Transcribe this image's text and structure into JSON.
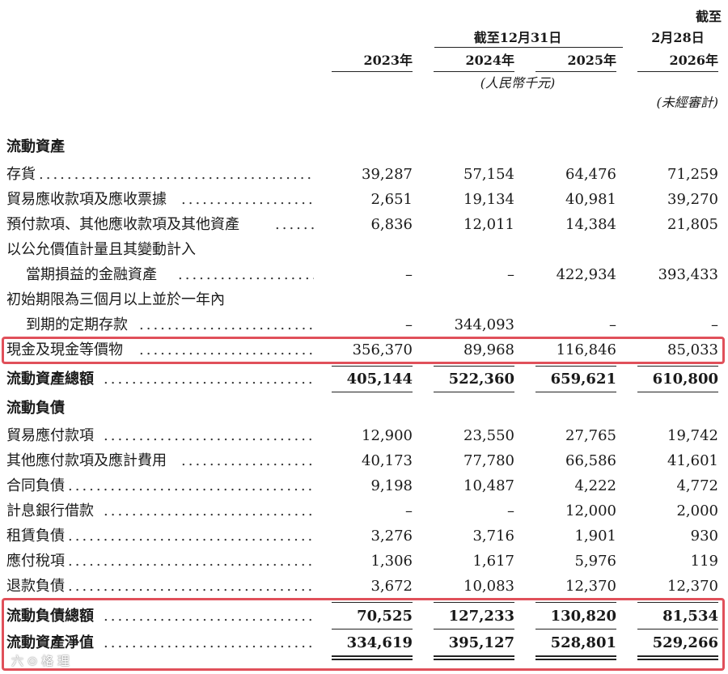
{
  "header": {
    "group_label": "截至12月31日",
    "last_col_line1": "截至",
    "last_col_line2": "2月28日",
    "years": [
      "2023年",
      "2024年",
      "2025年",
      "2026年"
    ],
    "unit_note": "(人民幣千元)",
    "unaudited_note": "(未經審計)"
  },
  "sections": {
    "current_assets_title": "流動資產",
    "current_liabilities_title": "流動負債"
  },
  "rows": [
    {
      "label": "存貨",
      "values": [
        "39,287",
        "57,154",
        "64,476",
        "71,259"
      ]
    },
    {
      "label": "貿易應收款項及應收票據",
      "values": [
        "2,651",
        "19,134",
        "40,981",
        "39,270"
      ]
    },
    {
      "label": "預付款項、其他應收款項及其他資產",
      "values": [
        "6,836",
        "12,011",
        "14,384",
        "21,805"
      ]
    },
    {
      "label": "以公允價值計量且其變動計入",
      "label2": "當期損益的金融資產",
      "values": [
        "–",
        "–",
        "422,934",
        "393,433"
      ]
    },
    {
      "label": "初始期限為三個月以上並於一年內",
      "label2": "到期的定期存款",
      "values": [
        "–",
        "344,093",
        "–",
        "–"
      ]
    },
    {
      "label": "現金及現金等價物",
      "values": [
        "356,370",
        "89,968",
        "116,846",
        "85,033"
      ]
    },
    {
      "label": "流動資產總額",
      "values": [
        "405,144",
        "522,360",
        "659,621",
        "610,800"
      ]
    },
    {
      "label": "貿易應付款項",
      "values": [
        "12,900",
        "23,550",
        "27,765",
        "19,742"
      ]
    },
    {
      "label": "其他應付款項及應計費用",
      "values": [
        "40,173",
        "77,780",
        "66,586",
        "41,601"
      ]
    },
    {
      "label": "合同負債",
      "values": [
        "9,198",
        "10,487",
        "4,222",
        "4,772"
      ]
    },
    {
      "label": "計息銀行借款",
      "values": [
        "–",
        "–",
        "12,000",
        "2,000"
      ]
    },
    {
      "label": "租賃負債",
      "values": [
        "3,276",
        "3,716",
        "1,901",
        "930"
      ]
    },
    {
      "label": "應付稅項",
      "values": [
        "1,306",
        "1,617",
        "5,976",
        "119"
      ]
    },
    {
      "label": "退款負債",
      "values": [
        "3,672",
        "10,083",
        "12,370",
        "12,370"
      ]
    },
    {
      "label": "流動負債總額",
      "values": [
        "70,525",
        "127,233",
        "130,820",
        "81,534"
      ]
    },
    {
      "label": "流動資產淨值",
      "values": [
        "334,619",
        "395,127",
        "528,801",
        "529,266"
      ]
    }
  ],
  "watermark": "六 ⊙ 格 理",
  "highlight_color": "#e0505a"
}
